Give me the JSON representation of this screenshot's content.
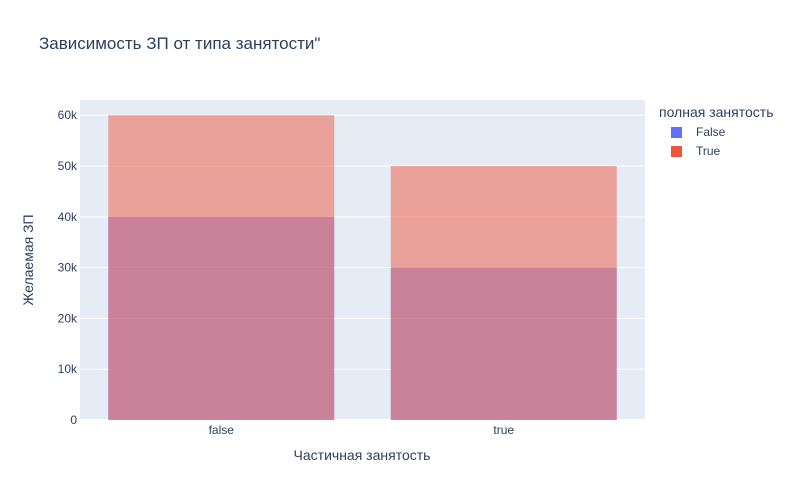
{
  "chart_data": {
    "type": "bar",
    "barmode": "overlay",
    "title": "Зависимость ЗП от типа занятости\"",
    "xlabel": "Частичная занятость",
    "ylabel": "Желаемая ЗП",
    "categories": [
      "false",
      "true"
    ],
    "series": [
      {
        "name": "False",
        "values": [
          40000,
          30000
        ],
        "color": "#636efa"
      },
      {
        "name": "True",
        "values": [
          60000,
          50000
        ],
        "color": "#ef553b"
      }
    ],
    "ylim": [
      0,
      63000
    ],
    "yticks": [
      0,
      10000,
      20000,
      30000,
      40000,
      50000,
      60000
    ],
    "ytick_labels": [
      "0",
      "10k",
      "20k",
      "30k",
      "40k",
      "50k",
      "60k"
    ],
    "legend_title": "полная занятость",
    "legend_position": "top-right",
    "grid": true,
    "colors": {
      "plot_background": "#e5ecf6",
      "text": "#2a3f5f"
    }
  }
}
